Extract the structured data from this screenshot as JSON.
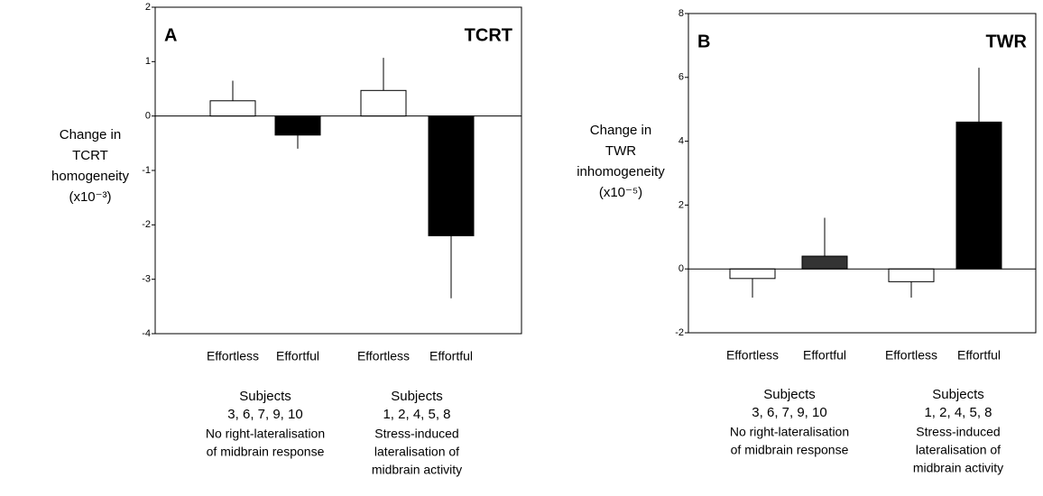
{
  "chart_data": [
    {
      "type": "bar",
      "panel": "A",
      "title": "TCRT",
      "ylabel": [
        "Change in",
        "TCRT",
        "homogeneity",
        "(x10⁻³)"
      ],
      "categories": [
        "Effortless",
        "Effortful",
        "Effortless",
        "Effortful"
      ],
      "values": [
        0.28,
        -0.35,
        0.47,
        -2.2
      ],
      "errors": [
        0.37,
        0.25,
        0.6,
        1.15
      ],
      "colors": [
        "#ffffff",
        "#000000",
        "#ffffff",
        "#000000"
      ],
      "groups": [
        [
          "Subjects",
          "3, 6, 7, 9, 10",
          "No right-lateralisation",
          "of midbrain response"
        ],
        [
          "Subjects",
          "1, 2, 4, 5, 8",
          "Stress-induced",
          "lateralisation of",
          "midbrain activity"
        ]
      ],
      "ylim": [
        -4,
        2
      ],
      "yticks": [
        -4,
        -3,
        -2,
        -1,
        0,
        1,
        2
      ]
    },
    {
      "type": "bar",
      "panel": "B",
      "title": "TWR",
      "ylabel": [
        "Change in",
        "TWR",
        "inhomogeneity",
        "(x10⁻⁵)"
      ],
      "categories": [
        "Effortless",
        "Effortful",
        "Effortless",
        "Effortful"
      ],
      "values": [
        -0.3,
        0.4,
        -0.4,
        4.6
      ],
      "errors": [
        0.6,
        1.2,
        0.5,
        1.7
      ],
      "colors": [
        "#ffffff",
        "#333333",
        "#ffffff",
        "#000000"
      ],
      "groups": [
        [
          "Subjects",
          "3, 6, 7, 9, 10",
          "No right-lateralisation",
          "of midbrain response"
        ],
        [
          "Subjects",
          "1, 2, 4, 5, 8",
          "Stress-induced",
          "lateralisation of",
          "midbrain activity"
        ]
      ],
      "ylim": [
        -2,
        8
      ],
      "yticks": [
        -2,
        0,
        2,
        4,
        6,
        8
      ]
    }
  ]
}
